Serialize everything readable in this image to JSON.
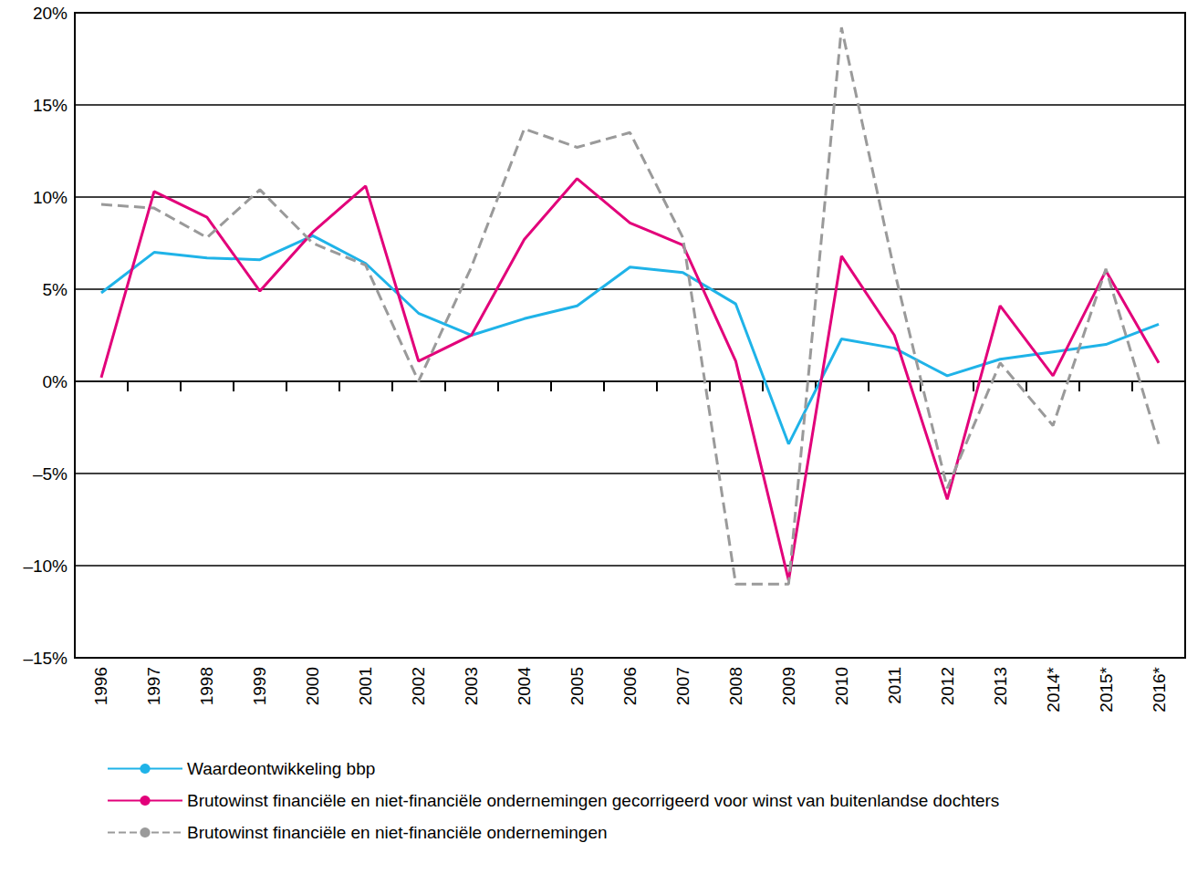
{
  "chart_data": {
    "type": "line",
    "categories": [
      "1996",
      "1997",
      "1998",
      "1999",
      "2000",
      "2001",
      "2002",
      "2003",
      "2004",
      "2005",
      "2006",
      "2007",
      "2008",
      "2009",
      "2010",
      "2011",
      "2012",
      "2013",
      "2014*",
      "2015*",
      "2016*"
    ],
    "series": [
      {
        "name": "Waardeontwikkeling bbp",
        "color": "#1fb3e8",
        "line_style": "solid",
        "values": [
          4.8,
          7.0,
          6.7,
          6.6,
          7.9,
          6.4,
          3.7,
          2.5,
          3.4,
          4.1,
          6.2,
          5.9,
          4.2,
          -3.4,
          2.3,
          1.8,
          0.3,
          1.2,
          1.6,
          2.0,
          3.1
        ]
      },
      {
        "name": "Brutowinst financiële en niet-financiële ondernemingen gecorrigeerd voor winst van buitenlandse dochters",
        "color": "#e2007a",
        "line_style": "solid",
        "values": [
          0.2,
          10.3,
          8.9,
          4.9,
          8.1,
          10.6,
          1.1,
          2.5,
          7.7,
          11.0,
          8.6,
          7.4,
          1.1,
          -10.8,
          6.8,
          2.5,
          -6.4,
          4.1,
          0.3,
          6.0,
          1.0
        ]
      },
      {
        "name": "Brutowinst financiële en niet-financiële ondernemingen",
        "color": "#9a9a9a",
        "line_style": "dashed",
        "values": [
          9.6,
          9.4,
          7.8,
          10.4,
          7.5,
          6.3,
          0.0,
          6.2,
          13.7,
          12.7,
          13.5,
          7.8,
          -11.0,
          -11.0,
          19.2,
          6.0,
          -5.8,
          1.0,
          -2.4,
          6.1,
          -3.4
        ]
      }
    ],
    "ylim": [
      -15,
      20
    ],
    "yticks": [
      {
        "value": -15,
        "label": "–15%"
      },
      {
        "value": -10,
        "label": "–10%"
      },
      {
        "value": -5,
        "label": "–5%"
      },
      {
        "value": 0,
        "label": "0%"
      },
      {
        "value": 5,
        "label": "5%"
      },
      {
        "value": 10,
        "label": "10%"
      },
      {
        "value": 15,
        "label": "15%"
      },
      {
        "value": 20,
        "label": "20%"
      }
    ],
    "grid": true,
    "legend": "bottom"
  }
}
